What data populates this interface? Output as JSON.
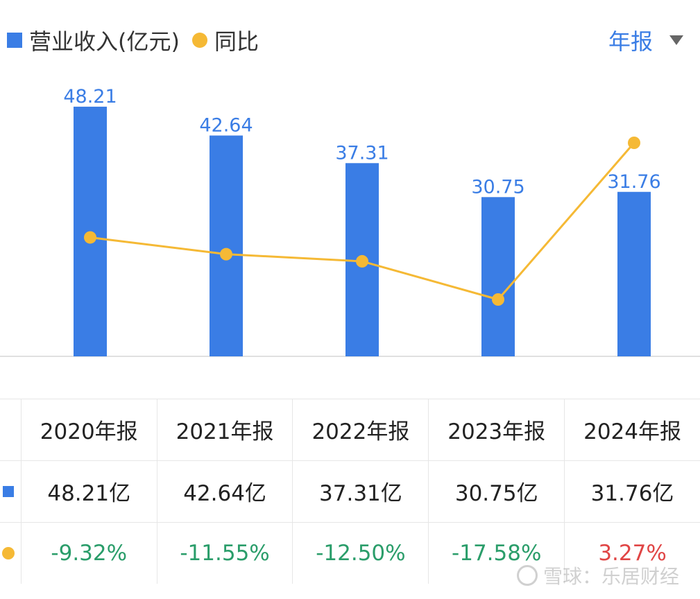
{
  "legend": {
    "bar_label": "营业收入(亿元)",
    "line_label": "同比"
  },
  "period_selector": {
    "label": "年报"
  },
  "chart_data": {
    "type": "bar",
    "categories": [
      "2020年报",
      "2021年报",
      "2022年报",
      "2023年报",
      "2024年报"
    ],
    "series": [
      {
        "name": "营业收入(亿元)",
        "type": "bar",
        "values": [
          48.21,
          42.64,
          37.31,
          30.75,
          31.76
        ],
        "color": "#3a7de5"
      },
      {
        "name": "同比",
        "type": "line",
        "values": [
          -9.32,
          -11.55,
          -12.5,
          -17.58,
          3.27
        ],
        "color": "#f5b935"
      }
    ],
    "bar_labels": [
      "48.21",
      "42.64",
      "37.31",
      "30.75",
      "31.76"
    ]
  },
  "table": {
    "headers": [
      "2020年报",
      "2021年报",
      "2022年报",
      "2023年报",
      "2024年报"
    ],
    "revenue": [
      "48.21亿",
      "42.64亿",
      "37.31亿",
      "30.75亿",
      "31.76亿"
    ],
    "yoy": [
      "-9.32%",
      "-11.55%",
      "-12.50%",
      "-17.58%",
      "3.27%"
    ]
  },
  "watermark": {
    "text": "雪球：乐居财经"
  }
}
